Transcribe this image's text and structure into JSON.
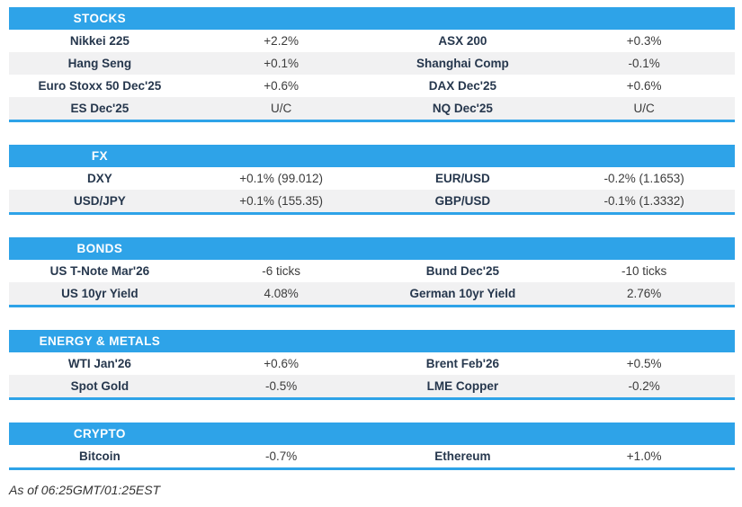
{
  "colors": {
    "header_bg": "#2EA3E8",
    "row_alt_bg": "#F1F1F2",
    "name_text": "#26374D",
    "value_text": "#3B3B3B",
    "header_text": "#FFFFFF",
    "section_underline": "#2EA3E8"
  },
  "footer": "As of 06:25GMT/01:25EST",
  "sections": [
    {
      "title": "STOCKS",
      "rows": [
        {
          "left_name": "Nikkei 225",
          "left_value": "+2.2%",
          "right_name": "ASX 200",
          "right_value": "+0.3%"
        },
        {
          "left_name": "Hang Seng",
          "left_value": "+0.1%",
          "right_name": "Shanghai Comp",
          "right_value": "-0.1%"
        },
        {
          "left_name": "Euro Stoxx 50 Dec'25",
          "left_value": "+0.6%",
          "right_name": "DAX Dec'25",
          "right_value": "+0.6%"
        },
        {
          "left_name": "ES Dec'25",
          "left_value": "U/C",
          "right_name": "NQ Dec'25",
          "right_value": "U/C"
        }
      ]
    },
    {
      "title": "FX",
      "rows": [
        {
          "left_name": "DXY",
          "left_value": "+0.1% (99.012)",
          "right_name": "EUR/USD",
          "right_value": "-0.2% (1.1653)"
        },
        {
          "left_name": "USD/JPY",
          "left_value": "+0.1% (155.35)",
          "right_name": "GBP/USD",
          "right_value": "-0.1% (1.3332)"
        }
      ]
    },
    {
      "title": "BONDS",
      "rows": [
        {
          "left_name": "US T-Note Mar'26",
          "left_value": "-6 ticks",
          "right_name": "Bund Dec'25",
          "right_value": "-10 ticks"
        },
        {
          "left_name": "US 10yr Yield",
          "left_value": "4.08%",
          "right_name": "German 10yr Yield",
          "right_value": "2.76%"
        }
      ]
    },
    {
      "title": "ENERGY & METALS",
      "rows": [
        {
          "left_name": "WTI Jan'26",
          "left_value": "+0.6%",
          "right_name": "Brent Feb'26",
          "right_value": "+0.5%"
        },
        {
          "left_name": "Spot Gold",
          "left_value": "-0.5%",
          "right_name": "LME Copper",
          "right_value": "-0.2%"
        }
      ]
    },
    {
      "title": "CRYPTO",
      "rows": [
        {
          "left_name": "Bitcoin",
          "left_value": "-0.7%",
          "right_name": "Ethereum",
          "right_value": "+1.0%"
        }
      ]
    }
  ]
}
